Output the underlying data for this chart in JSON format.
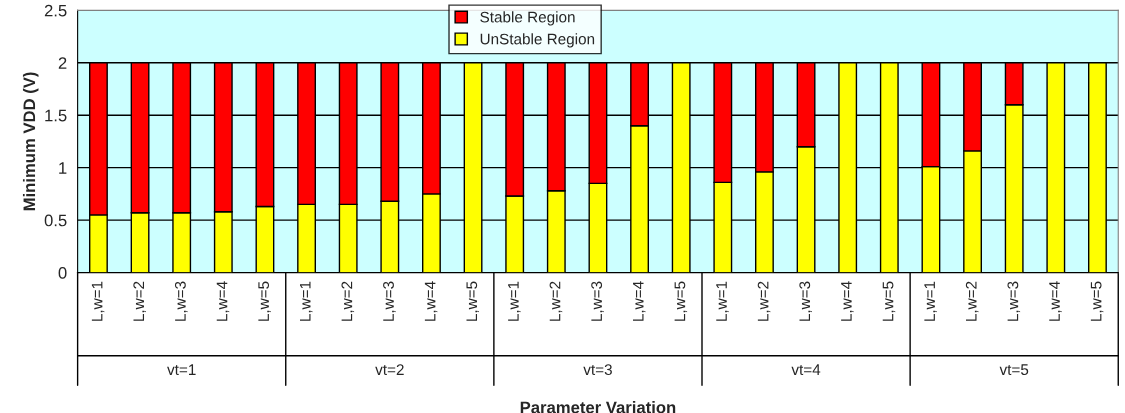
{
  "chart_data": {
    "type": "bar",
    "stacked": true,
    "xlabel": "Parameter Variation",
    "ylabel": "Minimum VDD (V)",
    "categories": [
      "L,w=1",
      "L,w=2",
      "L,w=3",
      "L,w=4",
      "L,w=5",
      "L,w=1",
      "L,w=2",
      "L,w=3",
      "L,w=4",
      "L,w=5",
      "L,w=1",
      "L,w=2",
      "L,w=3",
      "L,w=4",
      "L,w=5",
      "L,w=1",
      "L,w=2",
      "L,w=3",
      "L,w=4",
      "L,w=5",
      "L,w=1",
      "L,w=2",
      "L,w=3",
      "L,w=4",
      "L,w=5"
    ],
    "series": [
      {
        "name": "UnStable Region",
        "color": "#ffff00",
        "values": [
          0.55,
          0.57,
          0.57,
          0.58,
          0.63,
          0.65,
          0.65,
          0.68,
          0.75,
          2,
          0.73,
          0.78,
          0.85,
          1.4,
          2,
          0.86,
          0.96,
          1.2,
          2,
          2,
          1.01,
          1.16,
          1.6,
          2,
          2
        ]
      },
      {
        "name": "Stable Region",
        "color": "#ff0000",
        "values": [
          1.45,
          1.43,
          1.43,
          1.42,
          1.37,
          1.35,
          1.35,
          1.32,
          1.25,
          0,
          1.27,
          1.22,
          1.15,
          0.6,
          0,
          1.14,
          1.04,
          0.8,
          0,
          0,
          0.99,
          0.84,
          0.4,
          0,
          0
        ]
      }
    ],
    "annotations": [
      "vt=1",
      "vt=2",
      "vt=3",
      "vt=4",
      "vt=5"
    ],
    "ylim": [
      0,
      2.5
    ],
    "yticks": [
      0,
      0.5,
      1,
      1.5,
      2,
      2.5
    ],
    "grid": "y",
    "legend": "top"
  }
}
